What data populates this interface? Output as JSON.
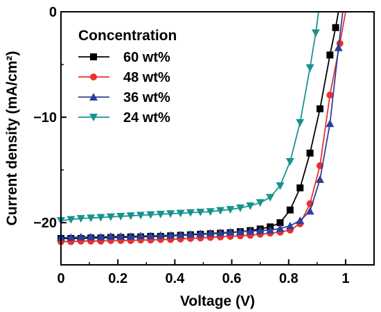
{
  "chart_data": {
    "type": "line",
    "xlabel": "Voltage (V)",
    "ylabel": "Current density (mA/cm²)",
    "xlim": [
      0,
      1.1
    ],
    "ylim": [
      -24,
      0
    ],
    "x_ticks": [
      0,
      0.2,
      0.4,
      0.6,
      0.8,
      1
    ],
    "x_tick_labels": [
      "0",
      "0.2",
      "0.4",
      "0.6",
      "0.8",
      "1"
    ],
    "y_ticks": [
      0,
      -10,
      -20
    ],
    "y_tick_labels": [
      "0",
      "−10",
      "−20"
    ],
    "grid": false,
    "legend": {
      "title": "Concentration",
      "position": "top-left"
    },
    "series": [
      {
        "name": "60 wt%",
        "color": "#000000",
        "marker": "square",
        "x": [
          0,
          0.035,
          0.07,
          0.105,
          0.14,
          0.175,
          0.21,
          0.245,
          0.28,
          0.315,
          0.35,
          0.385,
          0.42,
          0.455,
          0.49,
          0.525,
          0.56,
          0.595,
          0.63,
          0.665,
          0.7,
          0.735,
          0.77,
          0.805,
          0.84,
          0.875,
          0.91,
          0.945,
          0.965,
          0.975
        ],
        "y": [
          -21.5,
          -21.5,
          -21.5,
          -21.45,
          -21.45,
          -21.4,
          -21.4,
          -21.35,
          -21.35,
          -21.3,
          -21.3,
          -21.25,
          -21.2,
          -21.15,
          -21.1,
          -21.05,
          -21.0,
          -20.95,
          -20.85,
          -20.75,
          -20.6,
          -20.4,
          -20.0,
          -18.8,
          -16.7,
          -13.4,
          -9.2,
          -4.1,
          -1.5,
          0
        ]
      },
      {
        "name": "48 wt%",
        "color": "#e8312f",
        "marker": "circle",
        "x": [
          0,
          0.035,
          0.07,
          0.105,
          0.14,
          0.175,
          0.21,
          0.245,
          0.28,
          0.315,
          0.35,
          0.385,
          0.42,
          0.455,
          0.49,
          0.525,
          0.56,
          0.595,
          0.63,
          0.665,
          0.7,
          0.735,
          0.77,
          0.805,
          0.84,
          0.875,
          0.91,
          0.945,
          0.98,
          1.0
        ],
        "y": [
          -21.8,
          -21.8,
          -21.75,
          -21.75,
          -21.75,
          -21.7,
          -21.7,
          -21.7,
          -21.65,
          -21.65,
          -21.6,
          -21.6,
          -21.55,
          -21.5,
          -21.45,
          -21.4,
          -21.35,
          -21.3,
          -21.25,
          -21.2,
          -21.1,
          -21.0,
          -20.9,
          -20.7,
          -20.1,
          -18.2,
          -14.6,
          -7.9,
          -3.0,
          0
        ]
      },
      {
        "name": "36 wt%",
        "color": "#2e3f9a",
        "marker": "triangle-up",
        "x": [
          0,
          0.035,
          0.07,
          0.105,
          0.14,
          0.175,
          0.21,
          0.245,
          0.28,
          0.315,
          0.35,
          0.385,
          0.42,
          0.455,
          0.49,
          0.525,
          0.56,
          0.595,
          0.63,
          0.665,
          0.7,
          0.735,
          0.77,
          0.805,
          0.84,
          0.875,
          0.91,
          0.945,
          0.975,
          0.99
        ],
        "y": [
          -21.4,
          -21.4,
          -21.35,
          -21.35,
          -21.35,
          -21.3,
          -21.3,
          -21.3,
          -21.25,
          -21.25,
          -21.2,
          -21.2,
          -21.15,
          -21.1,
          -21.05,
          -21.0,
          -20.95,
          -20.9,
          -20.85,
          -20.8,
          -20.75,
          -20.7,
          -20.55,
          -20.3,
          -19.8,
          -18.9,
          -15.9,
          -10.6,
          -3.4,
          0
        ]
      },
      {
        "name": "24 wt%",
        "color": "#16938e",
        "marker": "triangle-down",
        "x": [
          0,
          0.035,
          0.07,
          0.105,
          0.14,
          0.175,
          0.21,
          0.245,
          0.28,
          0.315,
          0.35,
          0.385,
          0.42,
          0.455,
          0.49,
          0.525,
          0.56,
          0.595,
          0.63,
          0.665,
          0.7,
          0.735,
          0.77,
          0.805,
          0.84,
          0.875,
          0.895,
          0.905
        ],
        "y": [
          -19.8,
          -19.7,
          -19.6,
          -19.55,
          -19.5,
          -19.45,
          -19.4,
          -19.35,
          -19.3,
          -19.25,
          -19.2,
          -19.15,
          -19.1,
          -19.05,
          -19.0,
          -18.95,
          -18.85,
          -18.75,
          -18.6,
          -18.4,
          -18.1,
          -17.6,
          -16.5,
          -14.2,
          -10.5,
          -5.3,
          -2.0,
          0
        ]
      }
    ]
  }
}
